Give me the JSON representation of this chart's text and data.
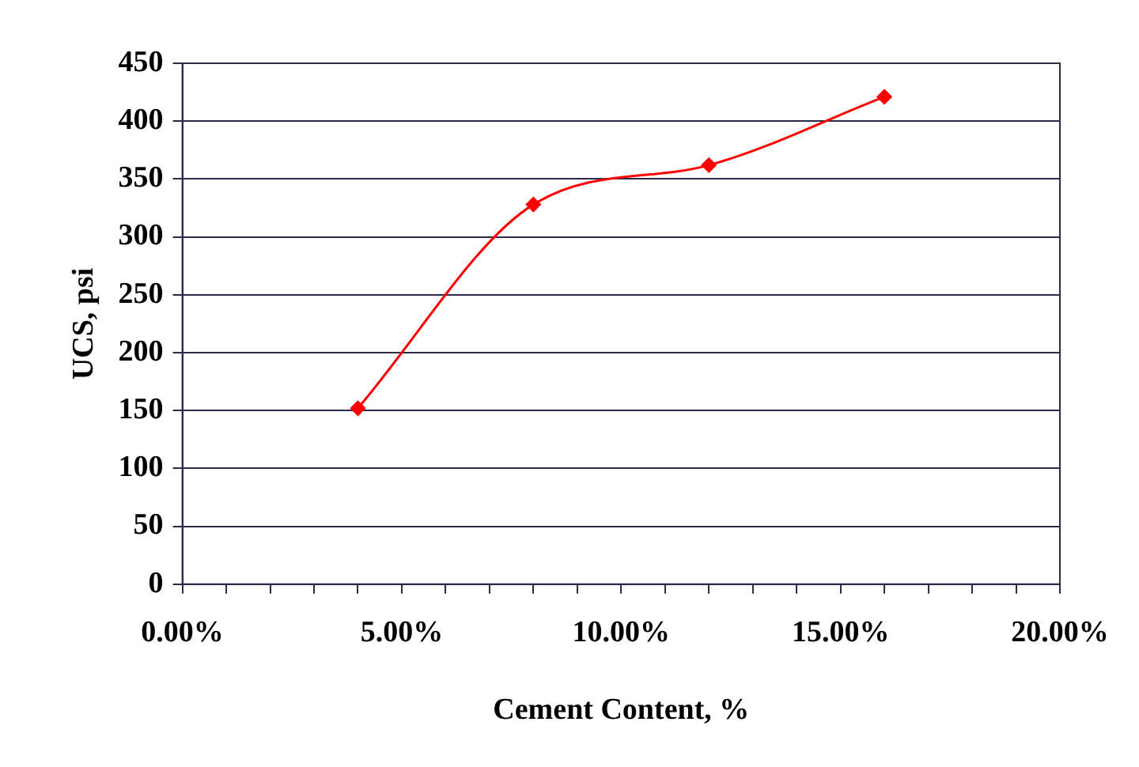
{
  "chart_data": {
    "type": "line",
    "xlabel": "Cement Content, %",
    "ylabel": "UCS, psi",
    "x": [
      4,
      8,
      12,
      16
    ],
    "series": [
      {
        "color": "#ff0000",
        "values": [
          152,
          328,
          362,
          421
        ]
      }
    ],
    "xlim": [
      0,
      20
    ],
    "xticks": [
      {
        "value": 0,
        "label": "0.00%"
      },
      {
        "value": 1,
        "label": null
      },
      {
        "value": 2,
        "label": null
      },
      {
        "value": 3,
        "label": null
      },
      {
        "value": 4,
        "label": null
      },
      {
        "value": 5,
        "label": "5.00%"
      },
      {
        "value": 6,
        "label": null
      },
      {
        "value": 7,
        "label": null
      },
      {
        "value": 8,
        "label": null
      },
      {
        "value": 9,
        "label": null
      },
      {
        "value": 10,
        "label": "10.00%"
      },
      {
        "value": 11,
        "label": null
      },
      {
        "value": 12,
        "label": null
      },
      {
        "value": 13,
        "label": null
      },
      {
        "value": 14,
        "label": null
      },
      {
        "value": 15,
        "label": "15.00%"
      },
      {
        "value": 16,
        "label": null
      },
      {
        "value": 17,
        "label": null
      },
      {
        "value": 18,
        "label": null
      },
      {
        "value": 19,
        "label": null
      },
      {
        "value": 20,
        "label": "20.00%"
      }
    ],
    "ylim": [
      0,
      450
    ],
    "yticks": [
      0,
      50,
      100,
      150,
      200,
      250,
      300,
      350,
      400,
      450
    ],
    "grid": "y",
    "legend": false,
    "marker": "diamond",
    "line_style": "solid"
  }
}
